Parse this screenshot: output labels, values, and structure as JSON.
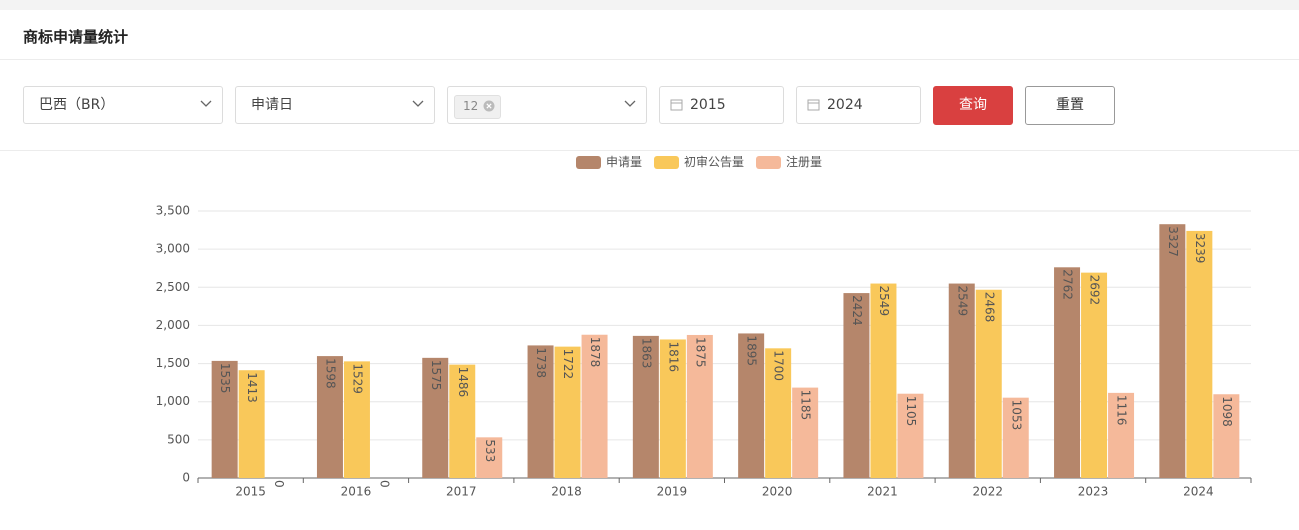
{
  "header": {
    "title": "商标申请量统计"
  },
  "filters": {
    "country": "巴西（BR）",
    "date_type": "申请日",
    "tag": "12",
    "start_year": "2015",
    "end_year": "2024",
    "query_button": "查询",
    "reset_button": "重置"
  },
  "chart_data": {
    "type": "bar",
    "categories": [
      "2015",
      "2016",
      "2017",
      "2018",
      "2019",
      "2020",
      "2021",
      "2022",
      "2023",
      "2024"
    ],
    "series": [
      {
        "name": "申请量",
        "color": "#b5866b",
        "values": [
          1535,
          1598,
          1575,
          1738,
          1863,
          1895,
          2424,
          2549,
          2762,
          3327
        ]
      },
      {
        "name": "初审公告量",
        "color": "#f9c85a",
        "values": [
          1413,
          1529,
          1486,
          1722,
          1816,
          1700,
          2549,
          2468,
          2692,
          3239
        ]
      },
      {
        "name": "注册量",
        "color": "#f5b99a",
        "values": [
          0,
          0,
          533,
          1878,
          1875,
          1185,
          1105,
          1053,
          1116,
          1098
        ]
      }
    ],
    "ylim": [
      0,
      3500
    ],
    "yticks": [
      0,
      500,
      {
        "value": 1000,
        "label": "1,000"
      },
      {
        "value": 1500,
        "label": "1,500"
      },
      {
        "value": 2000,
        "label": "2,000"
      },
      {
        "value": 2500,
        "label": "2,500"
      },
      {
        "value": 3000,
        "label": "3,000"
      },
      {
        "value": 3500,
        "label": "3,500"
      }
    ],
    "grid": true,
    "legend": "top"
  }
}
